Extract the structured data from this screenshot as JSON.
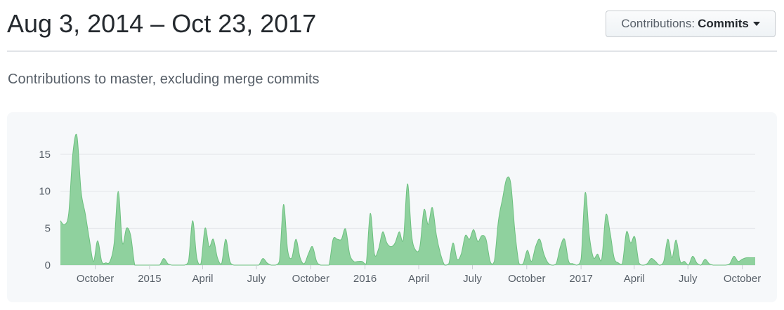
{
  "header": {
    "title": "Aug 3, 2014 – Oct 23, 2017",
    "dropdown_prefix": "Contributions:",
    "dropdown_value": "Commits"
  },
  "subtitle": "Contributions to master, excluding merge commits",
  "colors": {
    "area_fill": "#8fd19e",
    "area_stroke": "#6cc07f",
    "grid": "#e1e4e8",
    "panel_bg": "#f6f8fa"
  },
  "chart_data": {
    "type": "area",
    "title": "",
    "xlabel": "",
    "ylabel": "",
    "ylim": [
      0,
      18
    ],
    "yticks": [
      0,
      5,
      10,
      15
    ],
    "xlim": [
      "2014-08-03",
      "2017-10-23"
    ],
    "xticks": [
      {
        "date": "2014-10-01",
        "label": "October"
      },
      {
        "date": "2015-01-01",
        "label": "2015"
      },
      {
        "date": "2015-04-01",
        "label": "April"
      },
      {
        "date": "2015-07-01",
        "label": "July"
      },
      {
        "date": "2015-10-01",
        "label": "October"
      },
      {
        "date": "2016-01-01",
        "label": "2016"
      },
      {
        "date": "2016-04-01",
        "label": "April"
      },
      {
        "date": "2016-07-01",
        "label": "July"
      },
      {
        "date": "2016-10-01",
        "label": "October"
      },
      {
        "date": "2017-01-01",
        "label": "2017"
      },
      {
        "date": "2017-04-01",
        "label": "April"
      },
      {
        "date": "2017-07-01",
        "label": "July"
      },
      {
        "date": "2017-10-01",
        "label": "October"
      }
    ],
    "series": [
      {
        "name": "",
        "points": [
          [
            "2014-08-03",
            6
          ],
          [
            "2014-08-10",
            5.5
          ],
          [
            "2014-08-17",
            7
          ],
          [
            "2014-08-24",
            15
          ],
          [
            "2014-08-31",
            17.5
          ],
          [
            "2014-09-07",
            10
          ],
          [
            "2014-09-14",
            7
          ],
          [
            "2014-09-21",
            3.5
          ],
          [
            "2014-09-28",
            0.5
          ],
          [
            "2014-10-05",
            3.3
          ],
          [
            "2014-10-12",
            0.5
          ],
          [
            "2014-10-19",
            0.3
          ],
          [
            "2014-10-26",
            0.5
          ],
          [
            "2014-11-02",
            3
          ],
          [
            "2014-11-09",
            10
          ],
          [
            "2014-11-16",
            3
          ],
          [
            "2014-11-23",
            5
          ],
          [
            "2014-11-30",
            4
          ],
          [
            "2014-12-07",
            0
          ],
          [
            "2014-12-14",
            0
          ],
          [
            "2014-12-21",
            0
          ],
          [
            "2014-12-28",
            0
          ],
          [
            "2015-01-04",
            0
          ],
          [
            "2015-01-11",
            0
          ],
          [
            "2015-01-18",
            0
          ],
          [
            "2015-01-25",
            0.9
          ],
          [
            "2015-02-01",
            0.2
          ],
          [
            "2015-02-08",
            0
          ],
          [
            "2015-02-15",
            0
          ],
          [
            "2015-02-22",
            0
          ],
          [
            "2015-03-01",
            0
          ],
          [
            "2015-03-08",
            0.5
          ],
          [
            "2015-03-15",
            6
          ],
          [
            "2015-03-22",
            1
          ],
          [
            "2015-03-29",
            0.2
          ],
          [
            "2015-04-05",
            5
          ],
          [
            "2015-04-12",
            2.5
          ],
          [
            "2015-04-19",
            3.5
          ],
          [
            "2015-04-26",
            1
          ],
          [
            "2015-05-03",
            0.2
          ],
          [
            "2015-05-10",
            3.5
          ],
          [
            "2015-05-17",
            0.5
          ],
          [
            "2015-05-24",
            0
          ],
          [
            "2015-05-31",
            0
          ],
          [
            "2015-06-07",
            0
          ],
          [
            "2015-06-14",
            0
          ],
          [
            "2015-06-21",
            0
          ],
          [
            "2015-06-28",
            0
          ],
          [
            "2015-07-05",
            0
          ],
          [
            "2015-07-12",
            0.9
          ],
          [
            "2015-07-19",
            0.3
          ],
          [
            "2015-07-26",
            0
          ],
          [
            "2015-08-02",
            0
          ],
          [
            "2015-08-09",
            0.5
          ],
          [
            "2015-08-16",
            8.2
          ],
          [
            "2015-08-23",
            2
          ],
          [
            "2015-08-30",
            1
          ],
          [
            "2015-09-06",
            3.5
          ],
          [
            "2015-09-13",
            1
          ],
          [
            "2015-09-20",
            0.2
          ],
          [
            "2015-09-27",
            1.5
          ],
          [
            "2015-10-04",
            2.5
          ],
          [
            "2015-10-11",
            0.5
          ],
          [
            "2015-10-18",
            0
          ],
          [
            "2015-10-25",
            0
          ],
          [
            "2015-11-01",
            0
          ],
          [
            "2015-11-08",
            3.5
          ],
          [
            "2015-11-15",
            3.5
          ],
          [
            "2015-11-22",
            3.5
          ],
          [
            "2015-11-29",
            4.9
          ],
          [
            "2015-12-06",
            1.5
          ],
          [
            "2015-12-13",
            0.5
          ],
          [
            "2015-12-20",
            0.5
          ],
          [
            "2015-12-27",
            0.5
          ],
          [
            "2016-01-03",
            0.2
          ],
          [
            "2016-01-10",
            7
          ],
          [
            "2016-01-17",
            1.5
          ],
          [
            "2016-01-24",
            2.2
          ],
          [
            "2016-01-31",
            4.5
          ],
          [
            "2016-02-07",
            3
          ],
          [
            "2016-02-14",
            2.5
          ],
          [
            "2016-02-21",
            3
          ],
          [
            "2016-02-28",
            4.5
          ],
          [
            "2016-03-06",
            3.5
          ],
          [
            "2016-03-13",
            11
          ],
          [
            "2016-03-20",
            4
          ],
          [
            "2016-03-27",
            2
          ],
          [
            "2016-04-03",
            2.5
          ],
          [
            "2016-04-10",
            7.5
          ],
          [
            "2016-04-17",
            5.5
          ],
          [
            "2016-04-24",
            7.8
          ],
          [
            "2016-05-01",
            4
          ],
          [
            "2016-05-08",
            1.5
          ],
          [
            "2016-05-15",
            0
          ],
          [
            "2016-05-22",
            0.2
          ],
          [
            "2016-05-29",
            3
          ],
          [
            "2016-06-05",
            0.8
          ],
          [
            "2016-06-12",
            1.5
          ],
          [
            "2016-06-19",
            4
          ],
          [
            "2016-06-26",
            3.5
          ],
          [
            "2016-07-03",
            4.8
          ],
          [
            "2016-07-10",
            3.2
          ],
          [
            "2016-07-17",
            4
          ],
          [
            "2016-07-24",
            3.5
          ],
          [
            "2016-07-31",
            0.5
          ],
          [
            "2016-08-07",
            0.5
          ],
          [
            "2016-08-14",
            6
          ],
          [
            "2016-08-21",
            9
          ],
          [
            "2016-08-28",
            11.7
          ],
          [
            "2016-09-04",
            11
          ],
          [
            "2016-09-11",
            4.5
          ],
          [
            "2016-09-18",
            0.2
          ],
          [
            "2016-09-25",
            0.2
          ],
          [
            "2016-10-02",
            2
          ],
          [
            "2016-10-09",
            0.5
          ],
          [
            "2016-10-16",
            2.5
          ],
          [
            "2016-10-23",
            3.5
          ],
          [
            "2016-10-30",
            1.5
          ],
          [
            "2016-11-06",
            0.3
          ],
          [
            "2016-11-13",
            0
          ],
          [
            "2016-11-20",
            0.2
          ],
          [
            "2016-11-27",
            2.5
          ],
          [
            "2016-12-04",
            3.5
          ],
          [
            "2016-12-11",
            0.5
          ],
          [
            "2016-12-18",
            0.2
          ],
          [
            "2016-12-25",
            0
          ],
          [
            "2017-01-01",
            0.8
          ],
          [
            "2017-01-08",
            9.8
          ],
          [
            "2017-01-15",
            4
          ],
          [
            "2017-01-22",
            1
          ],
          [
            "2017-01-29",
            1.5
          ],
          [
            "2017-02-05",
            0.8
          ],
          [
            "2017-02-12",
            6.8
          ],
          [
            "2017-02-19",
            4.5
          ],
          [
            "2017-02-26",
            1
          ],
          [
            "2017-03-05",
            0.3
          ],
          [
            "2017-03-12",
            0.2
          ],
          [
            "2017-03-19",
            4.5
          ],
          [
            "2017-03-26",
            3
          ],
          [
            "2017-04-02",
            3.8
          ],
          [
            "2017-04-09",
            0.3
          ],
          [
            "2017-04-16",
            0
          ],
          [
            "2017-04-23",
            0.2
          ],
          [
            "2017-04-30",
            0.9
          ],
          [
            "2017-05-07",
            0.5
          ],
          [
            "2017-05-14",
            0
          ],
          [
            "2017-05-21",
            0.5
          ],
          [
            "2017-05-28",
            3.5
          ],
          [
            "2017-06-04",
            1
          ],
          [
            "2017-06-11",
            3.4
          ],
          [
            "2017-06-18",
            0.5
          ],
          [
            "2017-06-25",
            0.5
          ],
          [
            "2017-07-02",
            0
          ],
          [
            "2017-07-09",
            1.2
          ],
          [
            "2017-07-16",
            0.3
          ],
          [
            "2017-07-23",
            0
          ],
          [
            "2017-07-30",
            0.8
          ],
          [
            "2017-08-06",
            0.2
          ],
          [
            "2017-08-13",
            0
          ],
          [
            "2017-08-20",
            0
          ],
          [
            "2017-08-27",
            0
          ],
          [
            "2017-09-03",
            0
          ],
          [
            "2017-09-10",
            0.2
          ],
          [
            "2017-09-17",
            1.2
          ],
          [
            "2017-09-24",
            0.5
          ],
          [
            "2017-10-01",
            0.8
          ],
          [
            "2017-10-08",
            1
          ],
          [
            "2017-10-15",
            1
          ],
          [
            "2017-10-23",
            1
          ]
        ]
      }
    ],
    "grid": true,
    "legend": "none"
  }
}
